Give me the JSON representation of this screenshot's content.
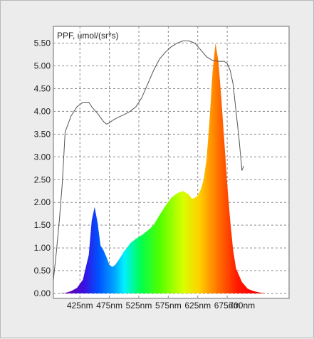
{
  "chart_data": {
    "type": "area",
    "title": "PPF, umol/(sr*s)",
    "xlabel": "",
    "ylabel": "",
    "x_tick_labels": [
      "425nm",
      "475nm",
      "525nm",
      "575nm",
      "625nm",
      "675nm",
      "700nm"
    ],
    "x_ticks": [
      425,
      475,
      525,
      575,
      625,
      675,
      700
    ],
    "xlim": [
      380,
      780
    ],
    "ylim": [
      0,
      5.9
    ],
    "y_tick_labels": [
      "0.00",
      "0.50",
      "1.00",
      "1.50",
      "2.00",
      "2.50",
      "3.00",
      "3.50",
      "4.00",
      "4.50",
      "5.00",
      "5.50"
    ],
    "y_ticks": [
      0,
      0.5,
      1.0,
      1.5,
      2.0,
      2.5,
      3.0,
      3.5,
      4.0,
      4.5,
      5.0,
      5.5
    ],
    "grid": true,
    "series": [
      {
        "kind": "filled_spectrum",
        "x": [
          380,
          390,
          400,
          410,
          420,
          430,
          440,
          445,
          450,
          455,
          460,
          465,
          470,
          475,
          480,
          485,
          490,
          495,
          500,
          505,
          510,
          515,
          520,
          530,
          540,
          550,
          560,
          570,
          580,
          590,
          600,
          610,
          615,
          620,
          625,
          630,
          635,
          640,
          645,
          650,
          655,
          660,
          665,
          670,
          675,
          680,
          685,
          690,
          700,
          710,
          720,
          730,
          740,
          750,
          760,
          770,
          780
        ],
        "y": [
          0,
          0,
          0.01,
          0.05,
          0.12,
          0.3,
          0.85,
          1.6,
          1.9,
          1.55,
          1.05,
          0.95,
          0.8,
          0.63,
          0.58,
          0.63,
          0.72,
          0.82,
          0.93,
          1.0,
          1.1,
          1.15,
          1.2,
          1.28,
          1.38,
          1.5,
          1.72,
          1.92,
          2.1,
          2.2,
          2.25,
          2.17,
          2.08,
          2.1,
          2.15,
          2.28,
          2.5,
          2.95,
          3.8,
          4.85,
          5.5,
          5.1,
          4.3,
          3.35,
          2.4,
          1.6,
          0.95,
          0.55,
          0.25,
          0.1,
          0.05,
          0.02,
          0,
          0,
          0,
          0,
          0
        ]
      },
      {
        "kind": "line",
        "color": "#555555",
        "x": [
          380,
          385,
          390,
          395,
          400,
          410,
          420,
          430,
          440,
          445,
          455,
          465,
          470,
          475,
          480,
          490,
          500,
          510,
          520,
          530,
          540,
          550,
          560,
          570,
          580,
          590,
          600,
          610,
          620,
          630,
          640,
          650,
          660,
          670,
          675,
          680,
          685,
          690,
          695,
          700,
          703
        ],
        "y": [
          0.3,
          0.9,
          1.6,
          2.4,
          3.55,
          3.9,
          4.1,
          4.2,
          4.2,
          4.1,
          3.95,
          3.78,
          3.72,
          3.75,
          3.8,
          3.87,
          3.93,
          4.0,
          4.1,
          4.3,
          4.6,
          4.9,
          5.15,
          5.3,
          5.42,
          5.5,
          5.55,
          5.55,
          5.5,
          5.35,
          5.2,
          5.12,
          5.1,
          5.1,
          5.05,
          4.9,
          4.6,
          4.0,
          3.4,
          2.7,
          2.8
        ]
      }
    ]
  }
}
